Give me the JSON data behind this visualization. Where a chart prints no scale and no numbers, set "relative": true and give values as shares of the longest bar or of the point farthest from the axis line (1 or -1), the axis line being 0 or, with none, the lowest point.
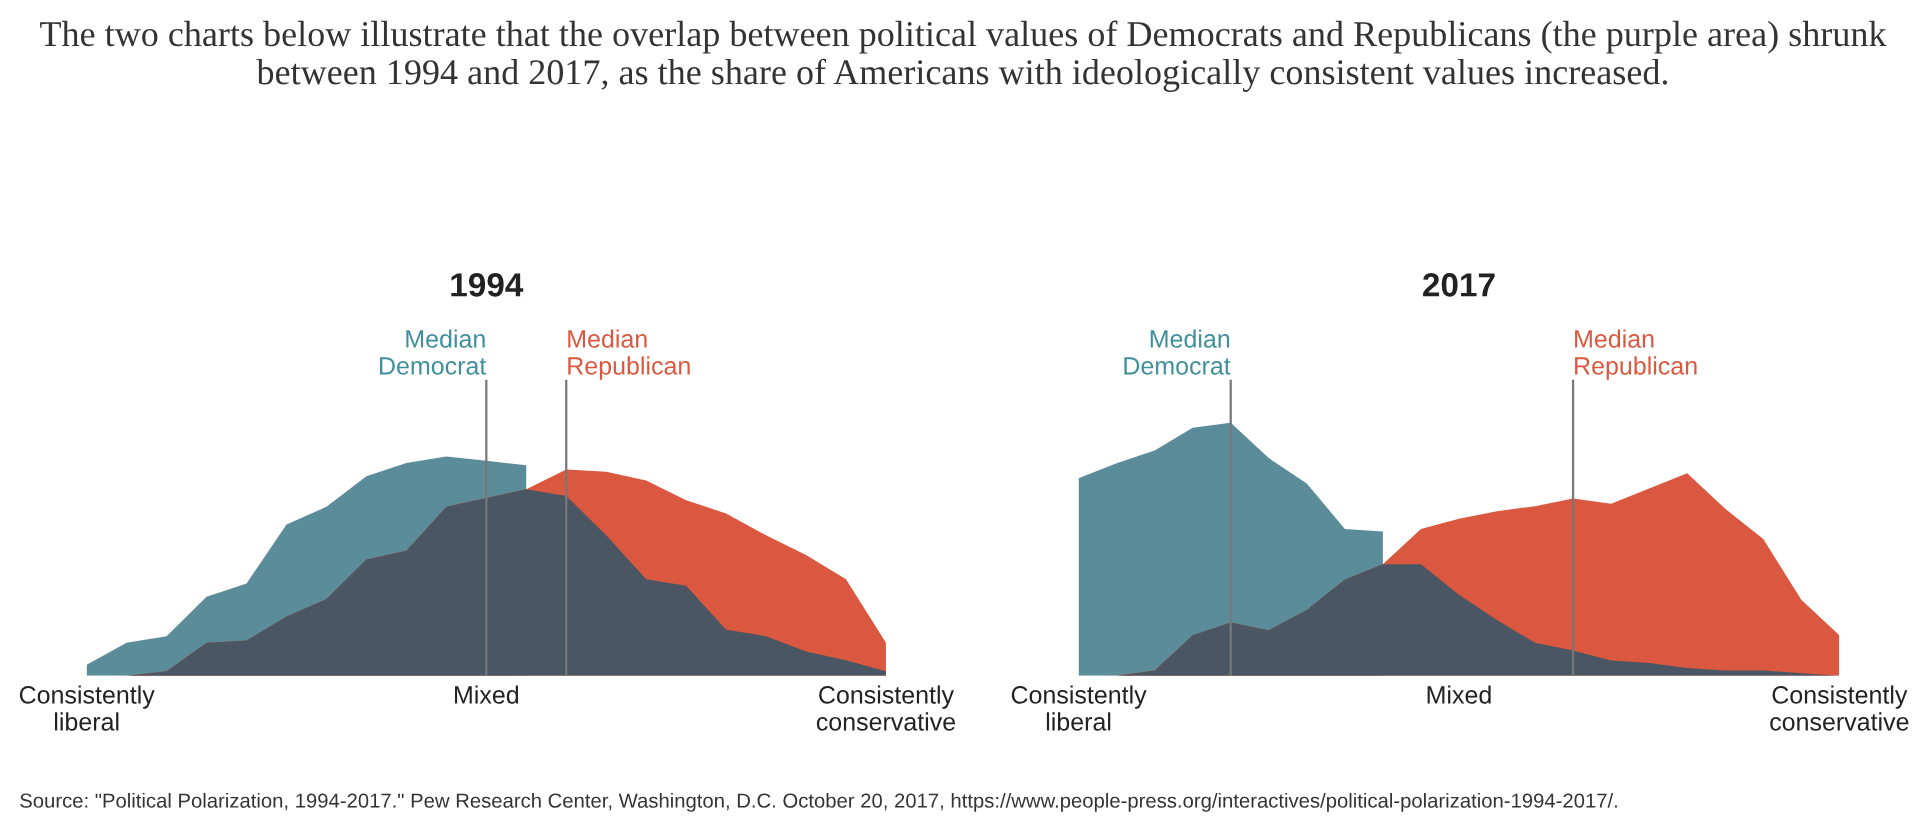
{
  "chart_data": [
    {
      "type": "area",
      "title": "1994",
      "relative": true,
      "categories": [
        "Consistently\nliberal",
        null,
        null,
        null,
        null,
        null,
        null,
        null,
        null,
        null,
        "Mixed",
        null,
        null,
        null,
        null,
        null,
        null,
        null,
        null,
        null,
        "Consistently\nconservative"
      ],
      "series": [
        {
          "color": "#5b8c9a",
          "values": [
            0.05,
            0.15,
            0.18,
            0.36,
            0.42,
            0.69,
            0.77,
            0.91,
            0.97,
            1,
            0.98,
            0.96,
            null,
            null,
            null,
            null,
            null,
            null,
            null,
            null,
            null
          ]
        },
        {
          "color": "#d9583f",
          "values": [
            0,
            0,
            0.02,
            0.15,
            0.16,
            0.27,
            0.35,
            0.53,
            0.57,
            0.77,
            0.81,
            0.85,
            0.94,
            0.93,
            0.89,
            0.8,
            0.74,
            0.64,
            0.55,
            0.44,
            0.15
          ]
        },
        {
          "color": "#4a5663",
          "values": [
            0,
            0,
            0.02,
            0.15,
            0.16,
            0.27,
            0.35,
            0.53,
            0.57,
            0.77,
            0.81,
            0.85,
            0.82,
            0.64,
            0.44,
            0.41,
            0.21,
            0.18,
            0.11,
            0.07,
            0.02
          ]
        }
      ],
      "annotations": [
        "The two charts below illustrate that the overlap between political values of Democrats and Republicans (the purple area) shrunk between 1994 and 2017, as the share of Americans with ideologically consistent values increased.",
        "Source: \"Political Polarization, 1994-2017.\" Pew Research Center, Washington, D.C. October 20, 2017, https://www.people-press.org/interactives/political-polarization-1994-2017/.",
        "Median\nDemocrat",
        "Median\nRepublican"
      ]
    },
    {
      "type": "area",
      "title": "2017",
      "relative": true,
      "categories": [
        "Consistently\nliberal",
        null,
        null,
        null,
        null,
        null,
        null,
        null,
        null,
        null,
        "Mixed",
        null,
        null,
        null,
        null,
        null,
        null,
        null,
        null,
        null,
        "Consistently\nconservative"
      ],
      "series": [
        {
          "color": "#5b8c9a",
          "values": [
            0.78,
            0.84,
            0.89,
            0.98,
            1,
            0.86,
            0.76,
            0.58,
            0.57,
            null,
            null,
            null,
            null,
            null,
            null,
            null,
            null,
            null,
            null,
            null,
            null
          ]
        },
        {
          "color": "#d9583f",
          "values": [
            0,
            0,
            0.02,
            0.16,
            0.21,
            0.18,
            0.26,
            0.38,
            0.44,
            0.58,
            0.62,
            0.65,
            0.67,
            0.7,
            0.68,
            0.74,
            0.8,
            0.66,
            0.54,
            0.3,
            0.16
          ]
        },
        {
          "color": "#4a5663",
          "values": [
            0,
            0,
            0.02,
            0.16,
            0.21,
            0.18,
            0.26,
            0.38,
            0.44,
            0.44,
            0.32,
            0.22,
            0.13,
            0.1,
            0.06,
            0.05,
            0.03,
            0.02,
            0.02,
            0.01,
            0
          ]
        }
      ],
      "annotations": [
        "Median\nDemocrat",
        "Median\nRepublican"
      ]
    }
  ]
}
